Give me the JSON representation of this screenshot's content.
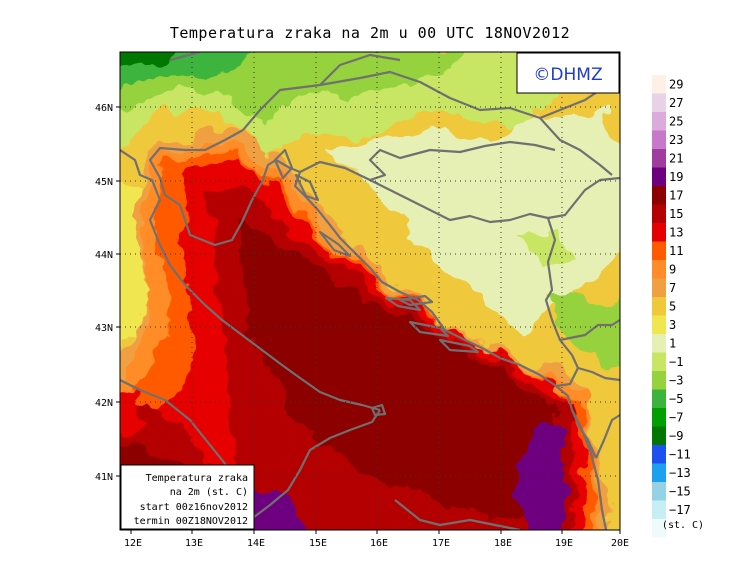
{
  "title": "Temperatura zraka na 2m u 00 UTC 18NOV2012",
  "logo": "©DHMZ",
  "info_box": {
    "line1": "Temperatura zraka",
    "line2": "na 2m (st. C)",
    "line3": "start 00z16nov2012",
    "line4": "termin 00Z18NOV2012"
  },
  "lat_labels": [
    "46N",
    "45N",
    "44N",
    "43N",
    "42N",
    "41N"
  ],
  "lon_labels": [
    "12E",
    "13E",
    "14E",
    "15E",
    "16E",
    "17E",
    "18E",
    "19E",
    "20E"
  ],
  "colorbar": {
    "unit": "(st. C)",
    "labels": [
      "29",
      "27",
      "25",
      "23",
      "21",
      "19",
      "17",
      "15",
      "13",
      "11",
      "9",
      "7",
      "5",
      "3",
      "1",
      "−1",
      "−3",
      "−5",
      "−7",
      "−9",
      "−11",
      "−13",
      "−15",
      "−17"
    ],
    "colors": [
      "#fdf1e6",
      "#e8d2e8",
      "#dcaadc",
      "#c878c8",
      "#a03ca0",
      "#6e0080",
      "#8c0000",
      "#b40000",
      "#e60000",
      "#ff5a00",
      "#ff8c28",
      "#f0a040",
      "#f0c83c",
      "#f0e650",
      "#e6f0b4",
      "#c8e664",
      "#96d23c",
      "#3cb43c",
      "#00a000",
      "#007800",
      "#1e50f0",
      "#1ea0f0",
      "#96d2e6",
      "#c8eef5",
      "#eefafc"
    ]
  },
  "colors": {
    "border": "#707070",
    "grid": "#444444"
  }
}
